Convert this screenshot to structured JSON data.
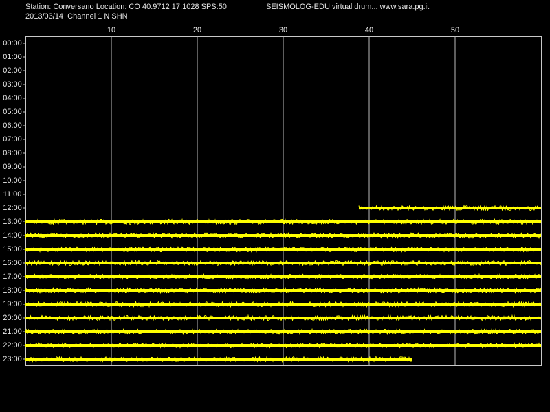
{
  "chart_data": {
    "type": "helicorder",
    "title": "Station: Conversano Location: CO 40.9712 17.1028 SPS:50",
    "annotation": "SEISMOLOG-EDU virtual drum... www.sara.pg.it",
    "subtitle": "2013/03/14  Channel 1 N SHN",
    "categories": [
      "00:00",
      "01:00",
      "02:00",
      "03:00",
      "04:00",
      "05:00",
      "06:00",
      "07:00",
      "08:00",
      "09:00",
      "10:00",
      "11:00",
      "12:00",
      "13:00",
      "14:00",
      "15:00",
      "16:00",
      "17:00",
      "18:00",
      "19:00",
      "20:00",
      "21:00",
      "22:00",
      "23:00"
    ],
    "segments": [
      null,
      null,
      null,
      null,
      null,
      null,
      null,
      null,
      null,
      null,
      null,
      null,
      [
        38.8,
        60
      ],
      [
        0,
        60
      ],
      [
        0,
        60
      ],
      [
        0,
        60
      ],
      [
        0,
        60
      ],
      [
        0,
        60
      ],
      [
        0,
        60
      ],
      [
        0,
        60
      ],
      [
        0,
        60
      ],
      [
        0,
        60
      ],
      [
        0,
        60
      ],
      [
        0,
        45
      ]
    ],
    "xlim": [
      0,
      60
    ],
    "xticks": [
      10,
      20,
      30,
      40,
      50
    ],
    "grid": true,
    "color": "#ffff00"
  }
}
